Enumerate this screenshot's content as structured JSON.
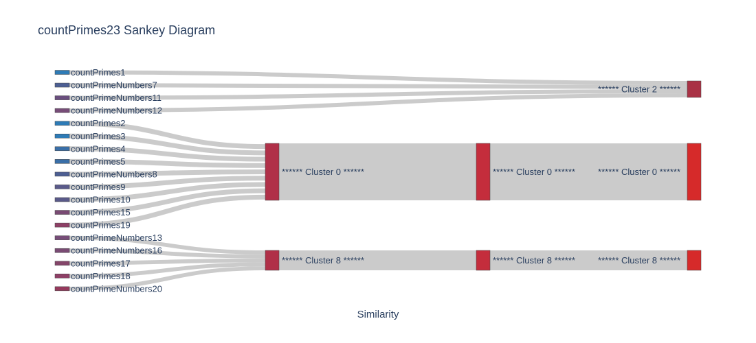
{
  "title": "countPrimes23 Sankey Diagram",
  "xlabel": "Similarity",
  "chart_data": {
    "type": "sankey",
    "sources": [
      {
        "label": "countPrimes1",
        "color": "#2e7bb6",
        "target": "cluster2"
      },
      {
        "label": "countPrimeNumbers7",
        "color": "#4d5f93",
        "target": "cluster2"
      },
      {
        "label": "countPrimeNumbers11",
        "color": "#6a4f7e",
        "target": "cluster2"
      },
      {
        "label": "countPrimeNumbers12",
        "color": "#774d78",
        "target": "cluster2"
      },
      {
        "label": "countPrimes2",
        "color": "#2e7bb6",
        "target": "cluster0"
      },
      {
        "label": "countPrimes3",
        "color": "#2e7bb6",
        "target": "cluster0"
      },
      {
        "label": "countPrimes4",
        "color": "#3a6fa8",
        "target": "cluster0"
      },
      {
        "label": "countPrimes5",
        "color": "#3a6fa8",
        "target": "cluster0"
      },
      {
        "label": "countPrimeNumbers8",
        "color": "#4d5f93",
        "target": "cluster0"
      },
      {
        "label": "countPrimes9",
        "color": "#5a5a8a",
        "target": "cluster0"
      },
      {
        "label": "countPrimes10",
        "color": "#5a5a8a",
        "target": "cluster0"
      },
      {
        "label": "countPrimes15",
        "color": "#7a4b74",
        "target": "cluster0"
      },
      {
        "label": "countPrimes19",
        "color": "#8e4066",
        "target": "cluster0"
      },
      {
        "label": "countPrimeNumbers13",
        "color": "#774d78",
        "target": "cluster8"
      },
      {
        "label": "countPrimeNumbers16",
        "color": "#7a4b74",
        "target": "cluster8"
      },
      {
        "label": "countPrimes17",
        "color": "#844569",
        "target": "cluster8"
      },
      {
        "label": "countPrimes18",
        "color": "#8e4066",
        "target": "cluster8"
      },
      {
        "label": "countPrimeNumbers20",
        "color": "#963a5d",
        "target": "cluster8"
      }
    ],
    "clusters": [
      {
        "id": "cluster0",
        "label": "****** Cluster 0 ******",
        "color_first": "#b03048",
        "color_mid": "#c42d3c",
        "color_last": "#d62a2a"
      },
      {
        "id": "cluster8",
        "label": "****** Cluster 8 ******",
        "color_first": "#b03048",
        "color_mid": "#c42d3c",
        "color_last": "#d62a2a"
      },
      {
        "id": "cluster2",
        "label": "****** Cluster 2 ******",
        "color_last": "#a93245"
      }
    ],
    "flow_color": "#c8c8c8"
  }
}
